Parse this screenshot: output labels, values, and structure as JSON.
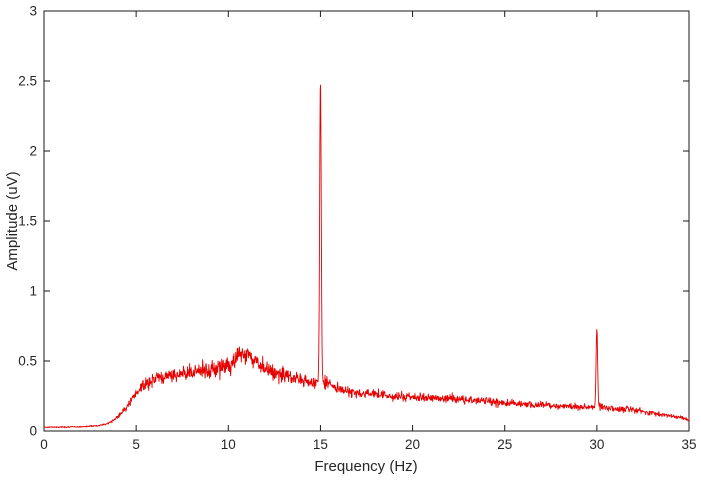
{
  "figure": {
    "background": "#ffffff",
    "axis_color": "#1a1a1a",
    "text_color": "#262626"
  },
  "chart_data": {
    "type": "line",
    "title": "",
    "xlabel": "Frequency (Hz)",
    "ylabel": "Amplitude (uV)",
    "xlim": [
      0,
      35
    ],
    "ylim": [
      0,
      3
    ],
    "xticks": [
      0,
      5,
      10,
      15,
      20,
      25,
      30,
      35
    ],
    "yticks": [
      0,
      0.5,
      1,
      1.5,
      2,
      2.5,
      3
    ],
    "grid": false,
    "legend": null,
    "box": true,
    "tick_direction": "in",
    "line_color": "#e60000",
    "line_width": 0.9,
    "description": "Noisy amplitude spectrum: broad hump ~5-14 Hz around 0.4-0.55 uV, sharp peak 2.53 uV at 15 Hz, sharp peak 0.73 uV at 30 Hz, slow decay to ~0.08 uV at 35 Hz",
    "series_synthesis": {
      "n_points": 1750,
      "seed": 42,
      "noise_fraction": 0.23,
      "min_value": 0.004,
      "envelope": [
        [
          0,
          0.028
        ],
        [
          1,
          0.028
        ],
        [
          2,
          0.03
        ],
        [
          3,
          0.038
        ],
        [
          3.5,
          0.055
        ],
        [
          4,
          0.1
        ],
        [
          4.5,
          0.17
        ],
        [
          5,
          0.27
        ],
        [
          5.5,
          0.33
        ],
        [
          6,
          0.38
        ],
        [
          7,
          0.4
        ],
        [
          8,
          0.42
        ],
        [
          9,
          0.44
        ],
        [
          10,
          0.47
        ],
        [
          10.8,
          0.55
        ],
        [
          11.2,
          0.54
        ],
        [
          11.6,
          0.49
        ],
        [
          12,
          0.44
        ],
        [
          12.5,
          0.42
        ],
        [
          13,
          0.4
        ],
        [
          13.5,
          0.38
        ],
        [
          14,
          0.36
        ],
        [
          14.5,
          0.34
        ],
        [
          15.3,
          0.35
        ],
        [
          16,
          0.3
        ],
        [
          16.5,
          0.28
        ],
        [
          17,
          0.27
        ],
        [
          18,
          0.26
        ],
        [
          19,
          0.25
        ],
        [
          20,
          0.24
        ],
        [
          21,
          0.235
        ],
        [
          22,
          0.23
        ],
        [
          23,
          0.225
        ],
        [
          24,
          0.21
        ],
        [
          25,
          0.2
        ],
        [
          26,
          0.19
        ],
        [
          27,
          0.185
        ],
        [
          28,
          0.18
        ],
        [
          29,
          0.175
        ],
        [
          29.7,
          0.17
        ],
        [
          30.3,
          0.17
        ],
        [
          31,
          0.16
        ],
        [
          32,
          0.15
        ],
        [
          33,
          0.13
        ],
        [
          34,
          0.11
        ],
        [
          35,
          0.085
        ]
      ],
      "peaks": [
        {
          "x": 15,
          "height": 2.53,
          "width": 0.06
        },
        {
          "x": 30,
          "height": 0.73,
          "width": 0.06
        }
      ]
    }
  }
}
